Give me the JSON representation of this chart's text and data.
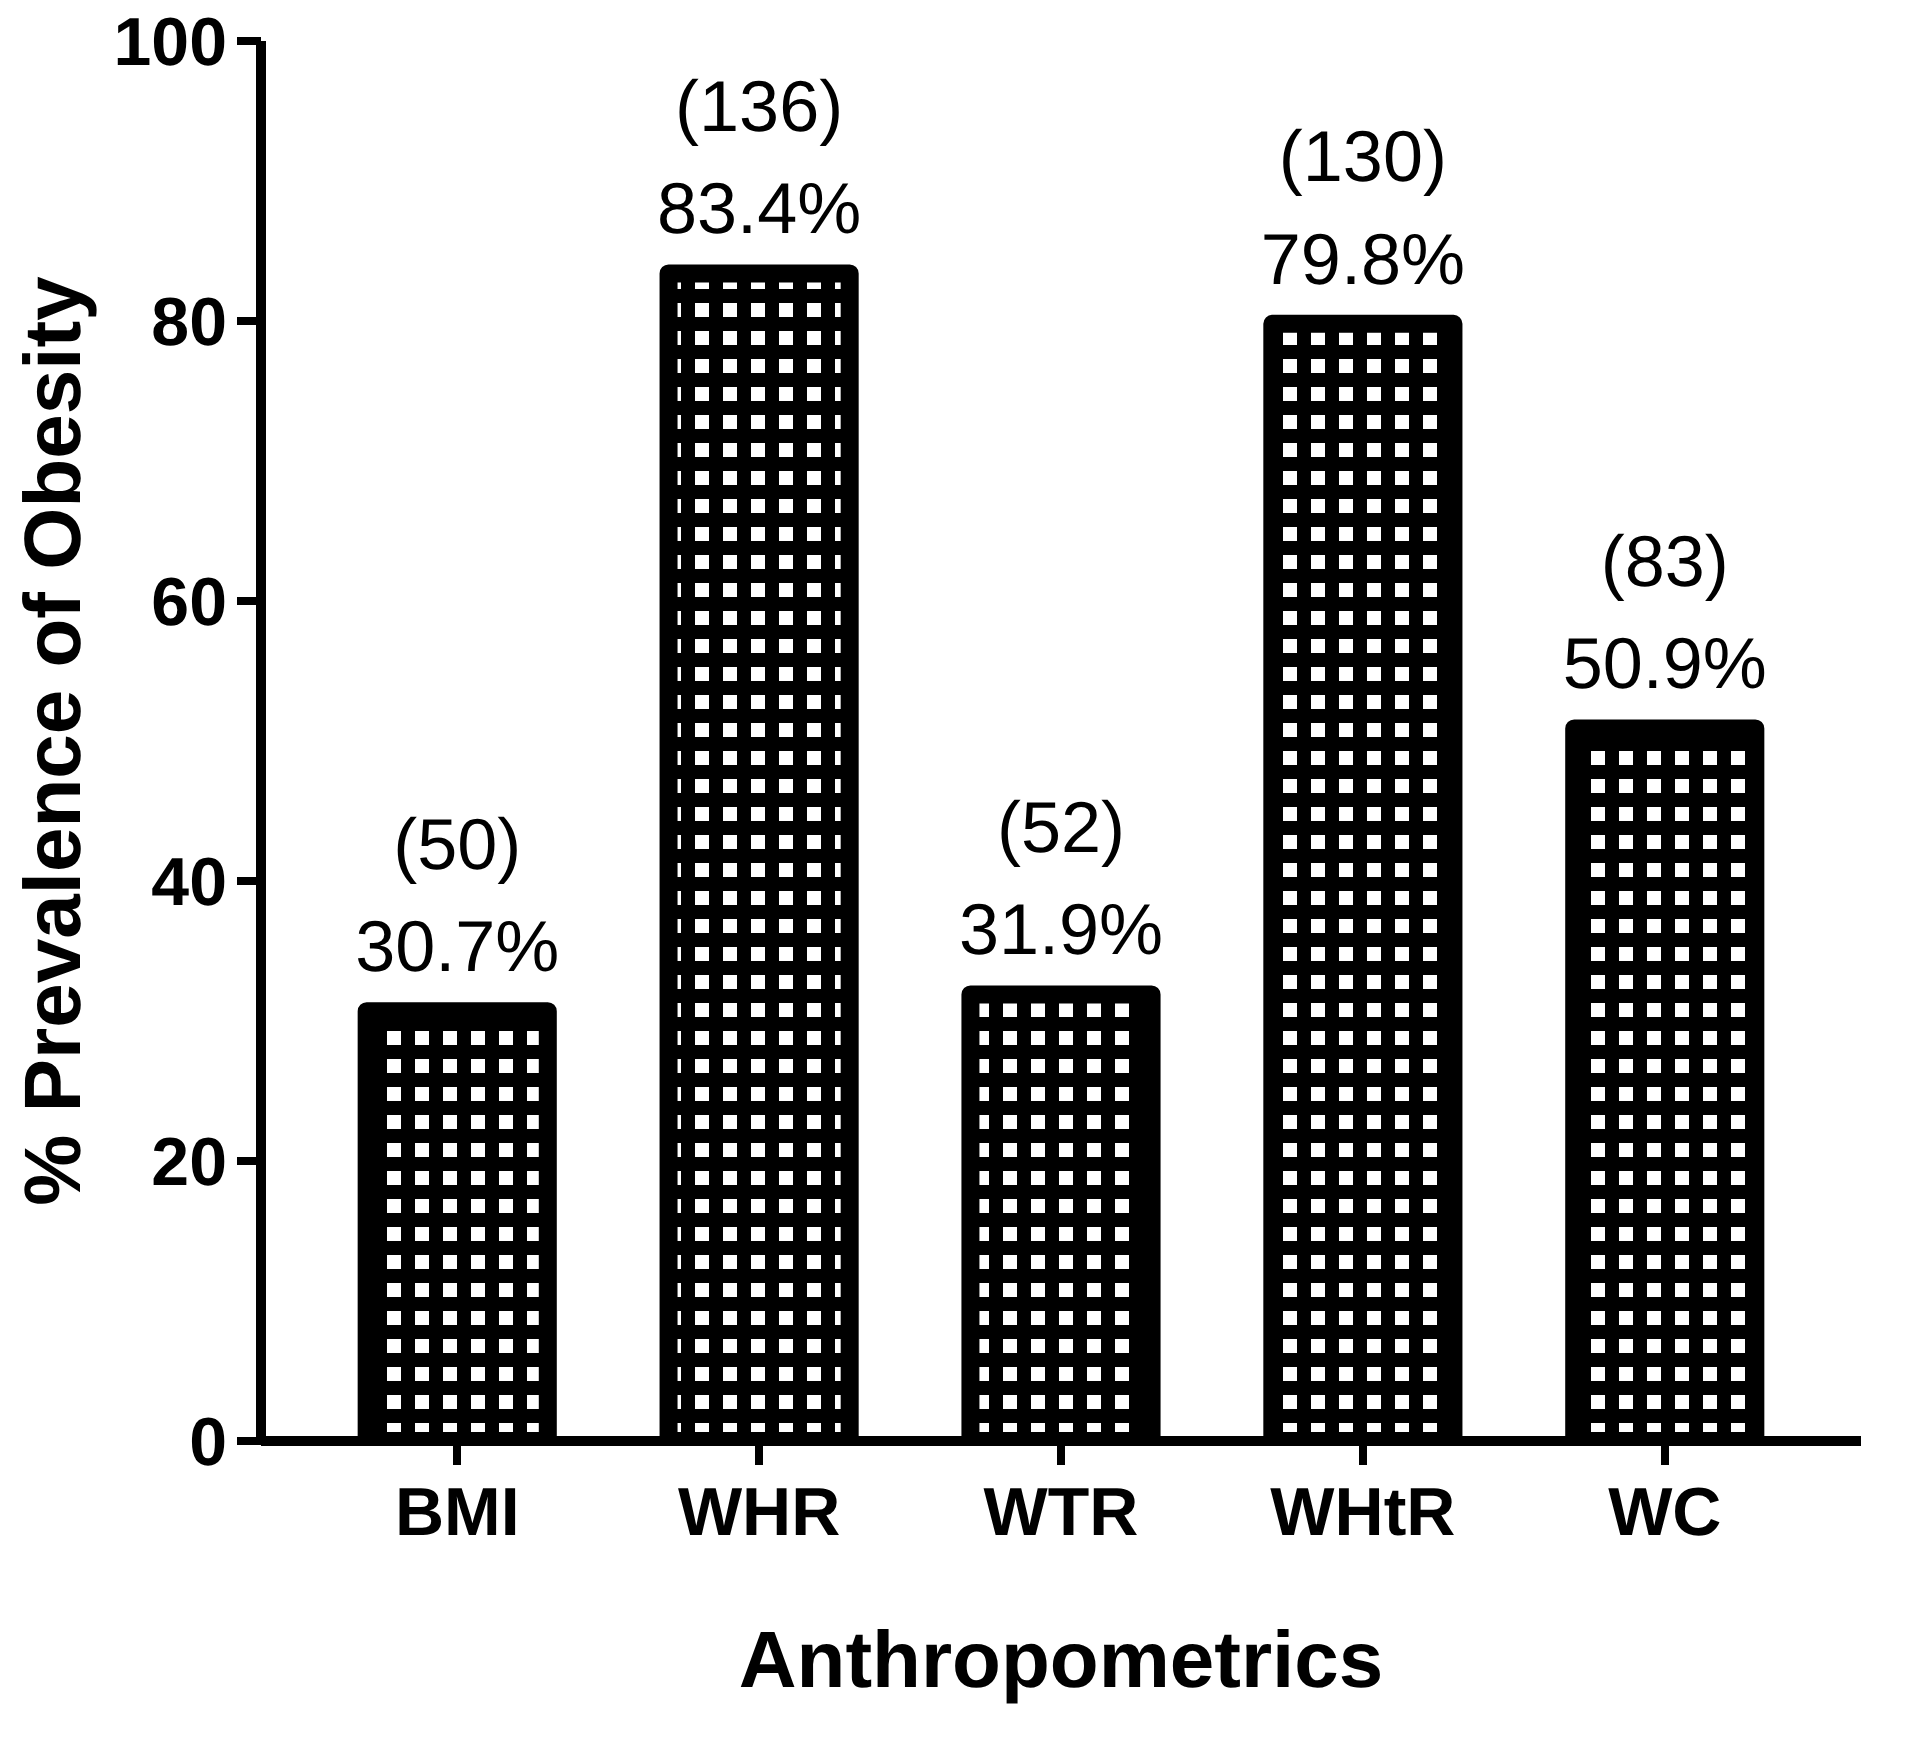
{
  "chart_data": {
    "type": "bar",
    "xlabel": "Anthropometrics",
    "ylabel": "% Prevalence of Obesity",
    "categories": [
      "BMI",
      "WHR",
      "WTR",
      "WHtR",
      "WC"
    ],
    "values": [
      30.7,
      83.4,
      31.9,
      79.8,
      50.9
    ],
    "value_labels": [
      "(50)\n30.7%",
      "(136)\n83.4%",
      "(52)\n31.9%",
      "(130)\n79.8%",
      "(83)\n50.9%"
    ],
    "color": "#000000",
    "ylim": [
      0,
      100
    ],
    "yticks": [
      0,
      20,
      40,
      60,
      80,
      100
    ],
    "grid": false
  }
}
